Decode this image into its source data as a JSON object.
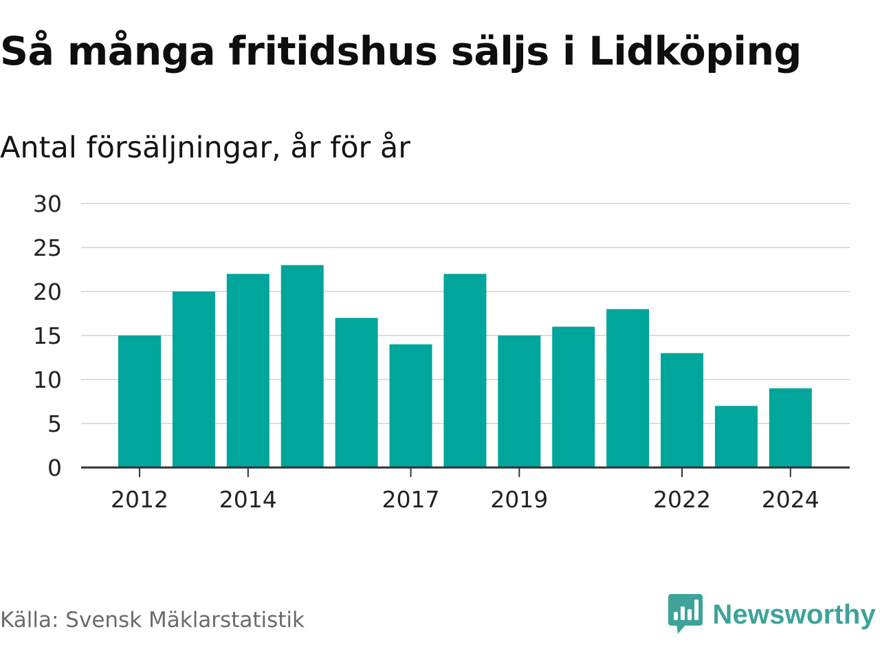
{
  "header": {
    "title": "Så många fritidshus säljs i Lidköping",
    "subtitle": "Antal försäljningar, år för år"
  },
  "footer": {
    "source": "Källa: Svensk Mäklarstatistik",
    "brand": "Newsworthy",
    "brand_icon": "newsworthy-logo-icon"
  },
  "colors": {
    "bar": "#00a59b",
    "grid": "#dddddd",
    "axis": "#333333",
    "brand": "#3ea39a"
  },
  "chart_data": {
    "type": "bar",
    "categories": [
      2012,
      2013,
      2014,
      2015,
      2016,
      2017,
      2018,
      2019,
      2020,
      2021,
      2022,
      2023,
      2024
    ],
    "values": [
      15,
      20,
      22,
      23,
      17,
      14,
      22,
      15,
      16,
      18,
      13,
      7,
      9
    ],
    "x_tick_labels": [
      "2012",
      "2014",
      "2017",
      "2019",
      "2022",
      "2024"
    ],
    "y_ticks": [
      0,
      5,
      10,
      15,
      20,
      25,
      30
    ],
    "ylim": [
      0,
      30
    ],
    "grid": true,
    "legend": "none"
  }
}
